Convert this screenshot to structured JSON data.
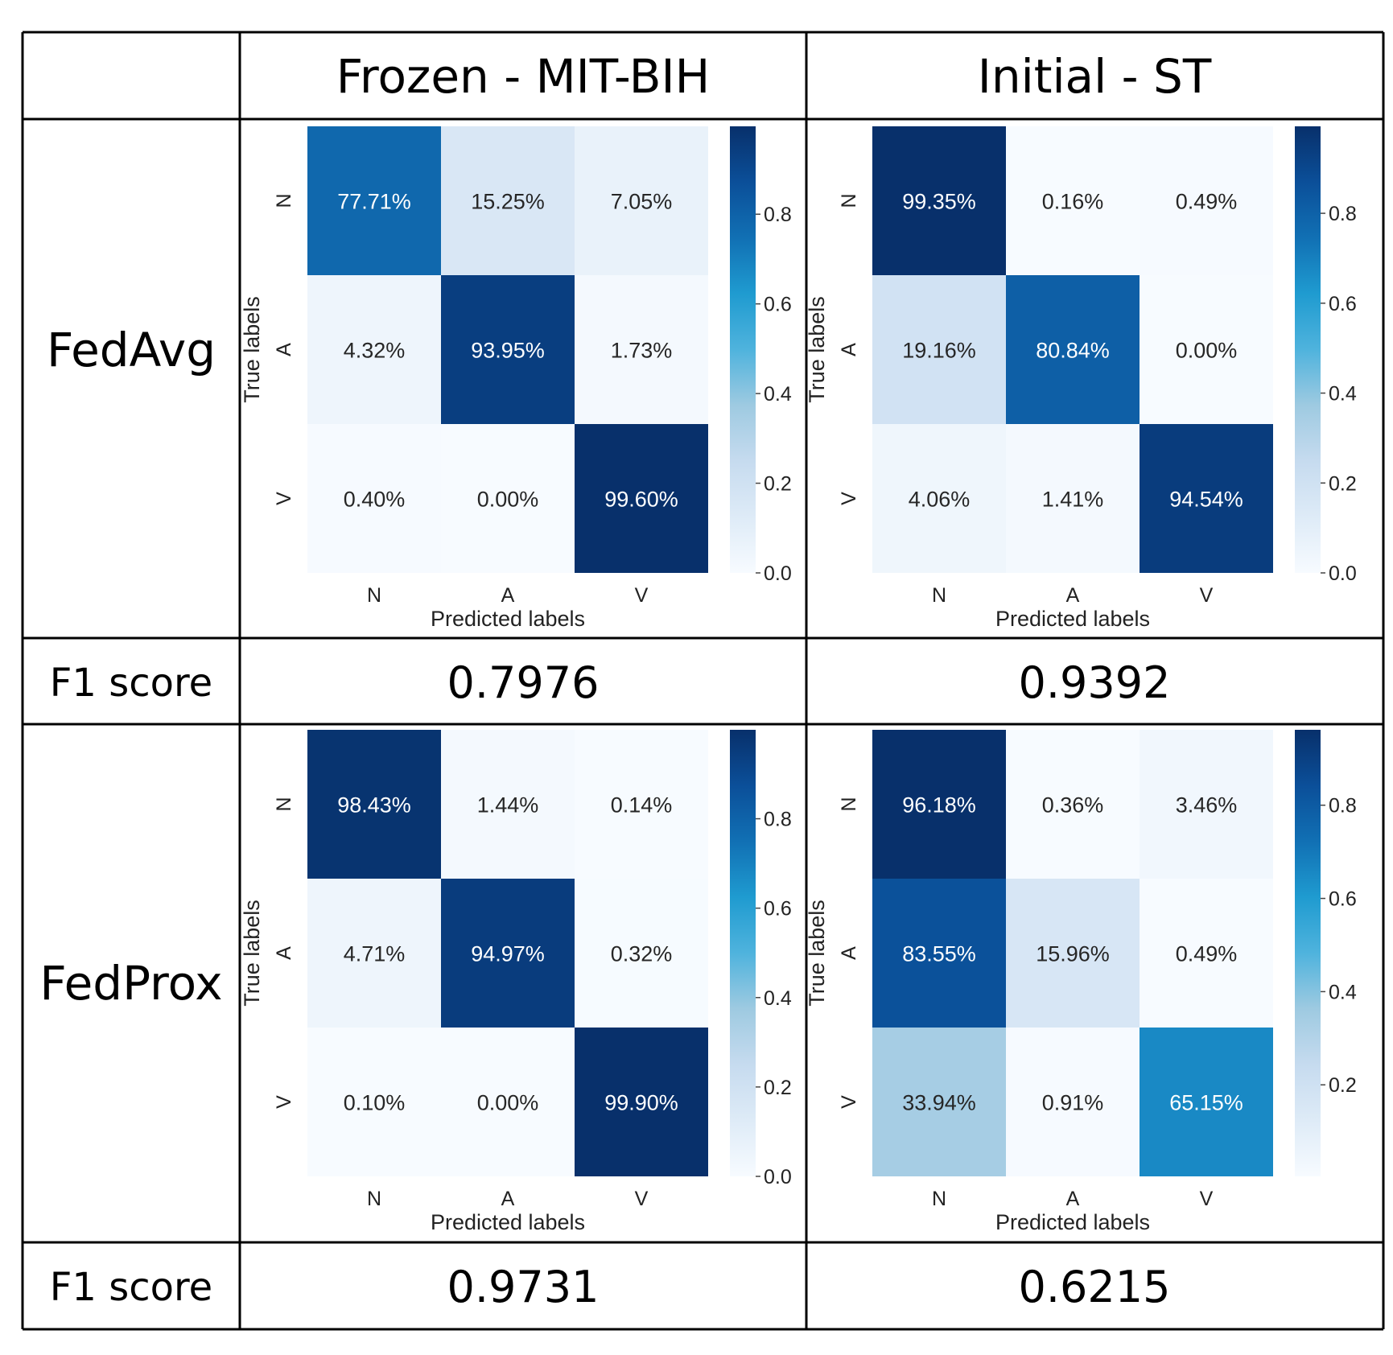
{
  "table": {
    "col_headers": [
      "Frozen - MIT-BIH",
      "Initial - ST"
    ],
    "row_labels": [
      "FedAvg",
      "FedProx"
    ],
    "f1_label": "F1 score",
    "f1_scores": [
      [
        "0.7976",
        "0.9392"
      ],
      [
        "0.9731",
        "0.6215"
      ]
    ]
  },
  "chart_data": [
    {
      "type": "heatmap",
      "method": "FedAvg",
      "setting": "Frozen - MIT-BIH",
      "xlabel": "Predicted labels",
      "ylabel": "True labels",
      "classes": [
        "N",
        "A",
        "V"
      ],
      "values": [
        [
          0.7771,
          0.1525,
          0.0705
        ],
        [
          0.0432,
          0.9395,
          0.0173
        ],
        [
          0.004,
          0.0,
          0.996
        ]
      ],
      "labels": [
        [
          "77.71%",
          "15.25%",
          "7.05%"
        ],
        [
          "4.32%",
          "93.95%",
          "1.73%"
        ],
        [
          "0.40%",
          "0.00%",
          "99.60%"
        ]
      ],
      "colorbar": {
        "range": [
          0,
          0.996
        ],
        "ticks": [
          "0.0",
          "0.2",
          "0.4",
          "0.6",
          "0.8"
        ],
        "tick_values": [
          0,
          0.2,
          0.4,
          0.6,
          0.8
        ]
      }
    },
    {
      "type": "heatmap",
      "method": "FedAvg",
      "setting": "Initial - ST",
      "xlabel": "Predicted labels",
      "ylabel": "True labels",
      "classes": [
        "N",
        "A",
        "V"
      ],
      "values": [
        [
          0.9935,
          0.0016,
          0.0049
        ],
        [
          0.1916,
          0.8084,
          0.0
        ],
        [
          0.0406,
          0.0141,
          0.9454
        ]
      ],
      "labels": [
        [
          "99.35%",
          "0.16%",
          "0.49%"
        ],
        [
          "19.16%",
          "80.84%",
          "0.00%"
        ],
        [
          "4.06%",
          "1.41%",
          "94.54%"
        ]
      ],
      "colorbar": {
        "range": [
          0,
          0.9935
        ],
        "ticks": [
          "0.0",
          "0.2",
          "0.4",
          "0.6",
          "0.8"
        ],
        "tick_values": [
          0,
          0.2,
          0.4,
          0.6,
          0.8
        ]
      }
    },
    {
      "type": "heatmap",
      "method": "FedProx",
      "setting": "Frozen - MIT-BIH",
      "xlabel": "Predicted labels",
      "ylabel": "True labels",
      "classes": [
        "N",
        "A",
        "V"
      ],
      "values": [
        [
          0.9843,
          0.0144,
          0.0014
        ],
        [
          0.0471,
          0.9497,
          0.0032
        ],
        [
          0.001,
          0.0,
          0.999
        ]
      ],
      "labels": [
        [
          "98.43%",
          "1.44%",
          "0.14%"
        ],
        [
          "4.71%",
          "94.97%",
          "0.32%"
        ],
        [
          "0.10%",
          "0.00%",
          "99.90%"
        ]
      ],
      "colorbar": {
        "range": [
          0,
          0.999
        ],
        "ticks": [
          "0.0",
          "0.2",
          "0.4",
          "0.6",
          "0.8"
        ],
        "tick_values": [
          0,
          0.2,
          0.4,
          0.6,
          0.8
        ]
      }
    },
    {
      "type": "heatmap",
      "method": "FedProx",
      "setting": "Initial - ST",
      "xlabel": "Predicted labels",
      "ylabel": "True labels",
      "classes": [
        "N",
        "A",
        "V"
      ],
      "values": [
        [
          0.9618,
          0.0036,
          0.0346
        ],
        [
          0.8355,
          0.1596,
          0.0049
        ],
        [
          0.3394,
          0.0091,
          0.6515
        ]
      ],
      "labels": [
        [
          "96.18%",
          "0.36%",
          "3.46%"
        ],
        [
          "83.55%",
          "15.96%",
          "0.49%"
        ],
        [
          "33.94%",
          "0.91%",
          "65.15%"
        ]
      ],
      "colorbar": {
        "range": [
          0.0036,
          0.9618
        ],
        "ticks": [
          "0.2",
          "0.4",
          "0.6",
          "0.8"
        ],
        "tick_values": [
          0.2,
          0.4,
          0.6,
          0.8
        ]
      }
    }
  ]
}
